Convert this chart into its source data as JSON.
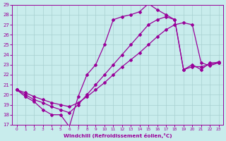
{
  "xlabel": "Windchill (Refroidissement éolien,°C)",
  "xlim": [
    -0.5,
    23.5
  ],
  "ylim": [
    17,
    29
  ],
  "yticks": [
    17,
    18,
    19,
    20,
    21,
    22,
    23,
    24,
    25,
    26,
    27,
    28,
    29
  ],
  "xticks": [
    0,
    1,
    2,
    3,
    4,
    5,
    6,
    7,
    8,
    9,
    10,
    11,
    12,
    13,
    14,
    15,
    16,
    17,
    18,
    19,
    20,
    21,
    22,
    23
  ],
  "background_color": "#c8ecec",
  "grid_color": "#a8d0d0",
  "line_color": "#990099",
  "marker": "D",
  "marker_size": 2.0,
  "line_width": 0.9,
  "series1_x": [
    0,
    1,
    2,
    3,
    4,
    5,
    6,
    7,
    8,
    9,
    10,
    11,
    12,
    13,
    14,
    15,
    16,
    17,
    18,
    19,
    20,
    21,
    22,
    23
  ],
  "series1_y": [
    20.5,
    19.8,
    19.3,
    18.5,
    18.0,
    18.0,
    16.8,
    19.8,
    22.0,
    23.0,
    25.0,
    27.5,
    27.8,
    28.0,
    28.3,
    29.1,
    28.5,
    28.0,
    27.5,
    22.5,
    23.0,
    22.5,
    23.2,
    23.2
  ],
  "series2_x": [
    0,
    1,
    2,
    3,
    4,
    5,
    6,
    7,
    8,
    9,
    10,
    11,
    12,
    13,
    14,
    15,
    16,
    17,
    18,
    19,
    20,
    21,
    22,
    23
  ],
  "series2_y": [
    20.5,
    20.0,
    19.5,
    19.2,
    18.8,
    18.5,
    18.2,
    19.0,
    20.0,
    21.0,
    22.0,
    23.0,
    24.0,
    25.0,
    26.0,
    27.0,
    27.5,
    27.8,
    27.5,
    22.5,
    22.8,
    22.8,
    23.0,
    23.3
  ],
  "series3_x": [
    0,
    1,
    2,
    3,
    4,
    5,
    6,
    7,
    8,
    9,
    10,
    11,
    12,
    13,
    14,
    15,
    16,
    17,
    18,
    19,
    20,
    21,
    22,
    23
  ],
  "series3_y": [
    20.5,
    20.2,
    19.8,
    19.5,
    19.2,
    19.0,
    18.8,
    19.2,
    19.8,
    20.5,
    21.2,
    22.0,
    22.8,
    23.5,
    24.2,
    25.0,
    25.8,
    26.5,
    27.0,
    27.2,
    27.0,
    23.2,
    22.9,
    23.2
  ]
}
